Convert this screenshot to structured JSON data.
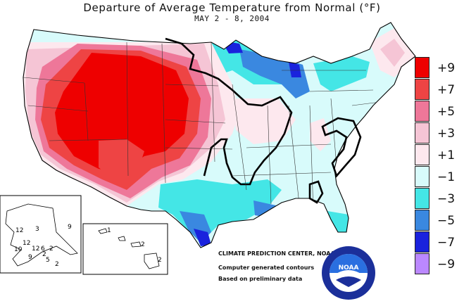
{
  "header": {
    "title": "Departure of Average Temperature from Normal (°F)",
    "subtitle": "MAY 2 - 8, 2004"
  },
  "legend": {
    "items": [
      {
        "label": "+9",
        "color": "#ee0000"
      },
      {
        "label": "+7",
        "color": "#ee4444"
      },
      {
        "label": "+5",
        "color": "#ee7799"
      },
      {
        "label": "+3",
        "color": "#f5c5d5"
      },
      {
        "label": "+1",
        "color": "#fde8ee"
      },
      {
        "label": "−1",
        "color": "#d8fbfb"
      },
      {
        "label": "−3",
        "color": "#44e6e6"
      },
      {
        "label": "−5",
        "color": "#3a88e0"
      },
      {
        "label": "−7",
        "color": "#1a22dd"
      },
      {
        "label": "−9",
        "color": "#bb88ff"
      }
    ]
  },
  "alaska_labels": [
    "12",
    "3",
    "9",
    "12",
    "10",
    "12",
    "6",
    "2",
    "2",
    "5",
    "2",
    "9"
  ],
  "hawaii_labels": [
    "1",
    "2",
    "2"
  ],
  "credits": {
    "line1": "CLIMATE PREDICTION CENTER, NOAA",
    "line2": "Computer generated contours",
    "line3": "Based on preliminary data"
  },
  "logo": {
    "text": "NOAA"
  }
}
